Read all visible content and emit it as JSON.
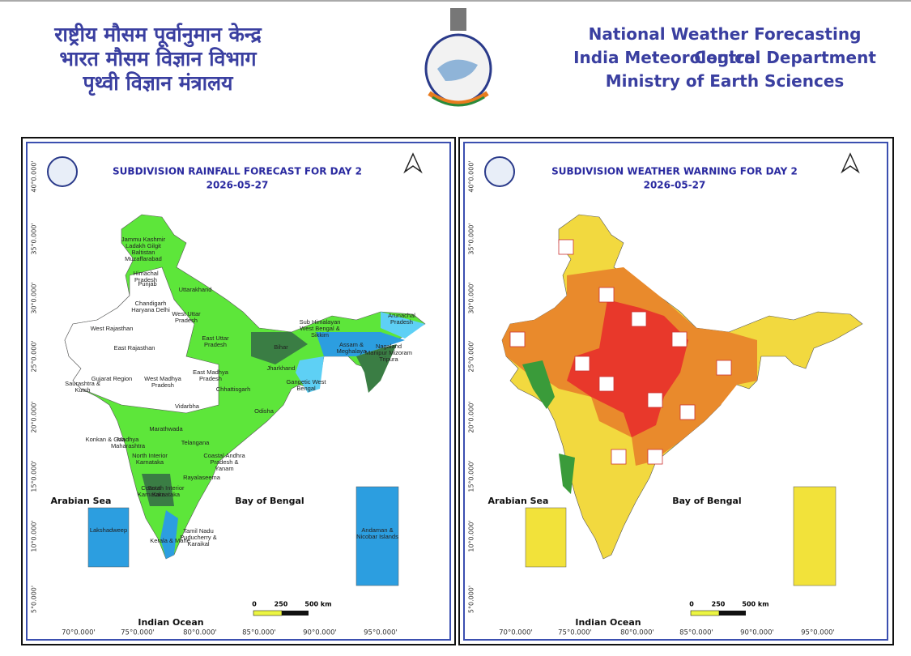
{
  "header": {
    "hindi": [
      "राष्ट्रीय मौसम पूर्वानुमान केन्द्र",
      "भारत मौसम विज्ञान विभाग",
      "पृथ्वी विज्ञान मंत्रालय"
    ],
    "english": [
      "National Weather Forecasting Centre",
      "India Meteorological Department",
      "Ministry of Earth Sciences"
    ]
  },
  "maps": [
    {
      "title": "SUBDIVISION RAINFALL FORECAST FOR DAY 2",
      "date": "2026-05-27",
      "lat_labels": [
        "40°0.000'",
        "35°0.000'",
        "30°0.000'",
        "25°0.000'",
        "20°0.000'",
        "15°0.000'",
        "10°0.000'",
        "5°0.000'"
      ],
      "lon_labels": [
        "70°0.000'",
        "75°0.000'",
        "80°0.000'",
        "85°0.000'",
        "90°0.000'",
        "95°0.000'"
      ],
      "seas": [
        "Arabian Sea",
        "Bay of Bengal",
        "Indian Ocean"
      ],
      "scale": [
        "0",
        "250",
        "500 km"
      ],
      "regions": [
        "Jammu Kashmir Ladakh Gilgit Baltistan Muzaffarabad",
        "Himachal Pradesh",
        "Punjab",
        "Uttarakhand",
        "Chandigarh Haryana Delhi",
        "West Uttar Pradesh",
        "West Rajasthan",
        "East Rajasthan",
        "East Uttar Pradesh",
        "Bihar",
        "Sub Himalayan West Bengal & Sikkim",
        "Arunachal Pradesh",
        "Assam & Meghalaya",
        "Nagaland Manipur Mizoram Tripura",
        "Jharkhand",
        "Gangetic West Bengal",
        "Saurashtra & Kutch",
        "Gujarat Region",
        "West Madhya Pradesh",
        "East Madhya Pradesh",
        "Chhattisgarh",
        "Odisha",
        "Vidarbha",
        "Konkan & Goa",
        "Madhya Maharashtra",
        "Marathwada",
        "North Interior Karnataka",
        "Telangana",
        "Coastal Andhra Pradesh & Yanam",
        "Coastal Karnataka",
        "South Interior Karnataka",
        "Rayalaseema",
        "Tamil Nadu Puducherry & Karaikal",
        "Kerala & Mahe",
        "Lakshadweep",
        "Andaman & Nicobar Islands"
      ]
    },
    {
      "title": "SUBDIVISION WEATHER WARNING FOR DAY 2",
      "date": "2026-05-27",
      "lat_labels": [
        "40°0.000'",
        "35°0.000'",
        "30°0.000'",
        "25°0.000'",
        "20°0.000'",
        "15°0.000'",
        "10°0.000'",
        "5°0.000'"
      ],
      "lon_labels": [
        "70°0.000'",
        "75°0.000'",
        "80°0.000'",
        "85°0.000'",
        "90°0.000'",
        "95°0.000'"
      ],
      "seas": [
        "Arabian Sea",
        "Bay of Bengal",
        "Indian Ocean"
      ],
      "scale": [
        "0",
        "250",
        "500 km"
      ]
    }
  ]
}
